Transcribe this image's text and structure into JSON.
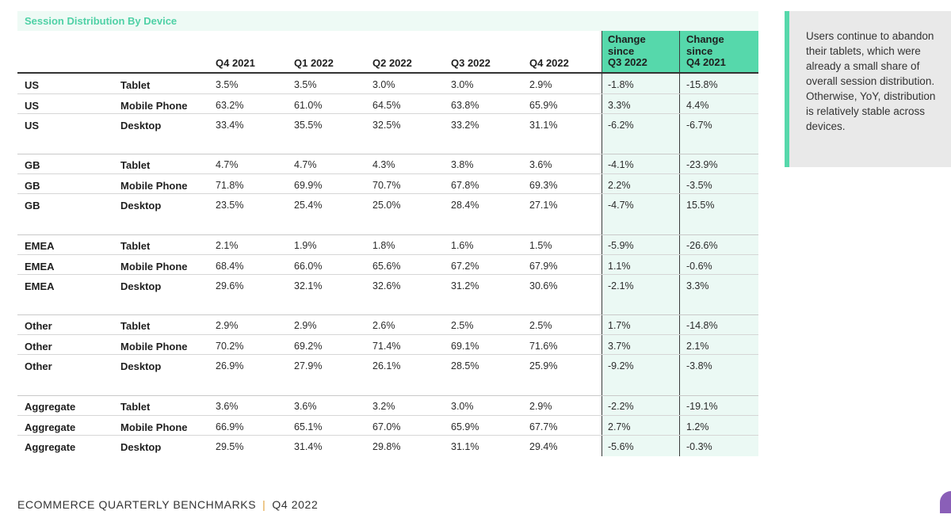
{
  "table": {
    "title": "Session Distribution By Device",
    "headers": [
      "Q4 2021",
      "Q1 2022",
      "Q2 2022",
      "Q3 2022",
      "Q4 2022"
    ],
    "change_headers": [
      [
        "Change",
        "since",
        "Q3 2022"
      ],
      [
        "Change",
        "since",
        "Q4 2021"
      ]
    ],
    "groups": [
      {
        "rows": [
          [
            "US",
            "Tablet",
            "3.5%",
            "3.5%",
            "3.0%",
            "3.0%",
            "2.9%",
            "-1.8%",
            "-15.8%"
          ],
          [
            "US",
            "Mobile Phone",
            "63.2%",
            "61.0%",
            "64.5%",
            "63.8%",
            "65.9%",
            "3.3%",
            "4.4%"
          ],
          [
            "US",
            "Desktop",
            "33.4%",
            "35.5%",
            "32.5%",
            "33.2%",
            "31.1%",
            "-6.2%",
            "-6.7%"
          ]
        ]
      },
      {
        "rows": [
          [
            "GB",
            "Tablet",
            "4.7%",
            "4.7%",
            "4.3%",
            "3.8%",
            "3.6%",
            "-4.1%",
            "-23.9%"
          ],
          [
            "GB",
            "Mobile Phone",
            "71.8%",
            "69.9%",
            "70.7%",
            "67.8%",
            "69.3%",
            "2.2%",
            "-3.5%"
          ],
          [
            "GB",
            "Desktop",
            "23.5%",
            "25.4%",
            "25.0%",
            "28.4%",
            "27.1%",
            "-4.7%",
            "15.5%"
          ]
        ]
      },
      {
        "rows": [
          [
            "EMEA",
            "Tablet",
            "2.1%",
            "1.9%",
            "1.8%",
            "1.6%",
            "1.5%",
            "-5.9%",
            "-26.6%"
          ],
          [
            "EMEA",
            "Mobile Phone",
            "68.4%",
            "66.0%",
            "65.6%",
            "67.2%",
            "67.9%",
            "1.1%",
            "-0.6%"
          ],
          [
            "EMEA",
            "Desktop",
            "29.6%",
            "32.1%",
            "32.6%",
            "31.2%",
            "30.6%",
            "-2.1%",
            "3.3%"
          ]
        ]
      },
      {
        "rows": [
          [
            "Other",
            "Tablet",
            "2.9%",
            "2.9%",
            "2.6%",
            "2.5%",
            "2.5%",
            "1.7%",
            "-14.8%"
          ],
          [
            "Other",
            "Mobile Phone",
            "70.2%",
            "69.2%",
            "71.4%",
            "69.1%",
            "71.6%",
            "3.7%",
            "2.1%"
          ],
          [
            "Other",
            "Desktop",
            "26.9%",
            "27.9%",
            "26.1%",
            "28.5%",
            "25.9%",
            "-9.2%",
            "-3.8%"
          ]
        ]
      },
      {
        "rows": [
          [
            "Aggregate",
            "Tablet",
            "3.6%",
            "3.6%",
            "3.2%",
            "3.0%",
            "2.9%",
            "-2.2%",
            "-19.1%"
          ],
          [
            "Aggregate",
            "Mobile Phone",
            "66.9%",
            "65.1%",
            "67.0%",
            "65.9%",
            "67.7%",
            "2.7%",
            "1.2%"
          ],
          [
            "Aggregate",
            "Desktop",
            "29.5%",
            "31.4%",
            "29.8%",
            "31.1%",
            "29.4%",
            "-5.6%",
            "-0.3%"
          ]
        ]
      }
    ]
  },
  "callout": {
    "text": "Users continue to abandon their tablets, which were already a small share of overall session distribution. Otherwise, YoY, distribution is relatively stable across devices."
  },
  "footer": {
    "left": "ECOMMERCE QUARTERLY BENCHMARKS",
    "separator": "|",
    "right": "Q4 2022"
  },
  "colors": {
    "accent": "#56d8ab",
    "accent_light": "#ebf9f4",
    "title_text": "#4fd1a6",
    "separator": "#e0a13a",
    "corner": "#8a5fb8"
  }
}
